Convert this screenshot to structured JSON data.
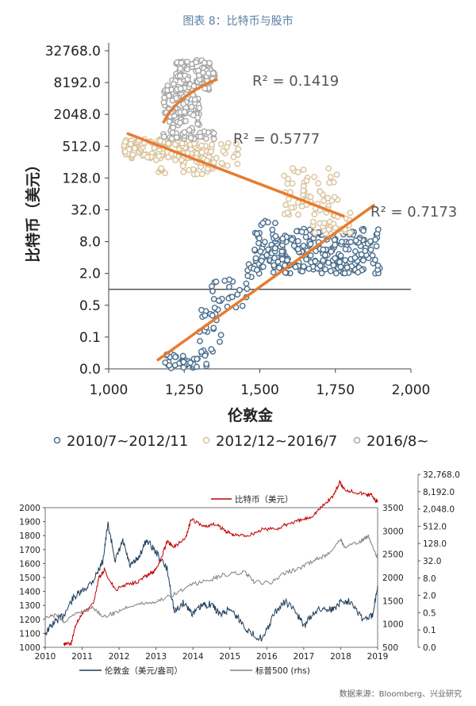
{
  "title": "图表 8：比特币与股市",
  "source": "数据来源：Bloomberg、兴业研究",
  "chart_data": [
    {
      "type": "scatter",
      "xlabel": "伦敦金",
      "ylabel": "比特币（美元）",
      "xlim": [
        1000,
        2000
      ],
      "yscale": "log2",
      "ylim": [
        0.05,
        32768
      ],
      "x_ticks": [
        1000,
        1250,
        1500,
        1750,
        2000
      ],
      "x_tick_labels": [
        "1,000",
        "1,250",
        "1,500",
        "1,750",
        "2,000"
      ],
      "y_ticks": [
        0.05,
        0.1,
        0.5,
        2,
        8,
        32,
        128,
        512,
        2048,
        8192,
        32768
      ],
      "y_tick_labels": [
        "0.0",
        "0.1",
        "0.5",
        "2.0",
        "8.0",
        "32.0",
        "128.0",
        "512.0",
        "2048.0",
        "8192.0",
        "32768.0"
      ],
      "legend_position": "bottom",
      "series": [
        {
          "name": "2010/7~2012/11",
          "color": "#4a6d8c",
          "clusters": [
            {
              "x": [
                1180,
                1330
              ],
              "y": [
                0.05,
                0.07
              ],
              "n": 40
            },
            {
              "x": [
                1300,
                1380
              ],
              "y": [
                0.07,
                0.4
              ],
              "n": 22
            },
            {
              "x": [
                1340,
                1470
              ],
              "y": [
                0.4,
                1.6
              ],
              "n": 24
            },
            {
              "x": [
                1420,
                1500
              ],
              "y": [
                1.2,
                3
              ],
              "n": 10
            },
            {
              "x": [
                1480,
                1560
              ],
              "y": [
                2.5,
                20
              ],
              "n": 40
            },
            {
              "x": [
                1540,
                1900
              ],
              "y": [
                2,
                14
              ],
              "n": 230
            }
          ],
          "trend_r2": 0.7173,
          "trend": {
            "x": [
              1160,
              1880
            ],
            "y": [
              0.06,
              40
            ]
          }
        },
        {
          "name": "2012/12~2016/7",
          "color": "#d9c29a",
          "clusters": [
            {
              "x": [
                1050,
                1300
              ],
              "y": [
                300,
                700
              ],
              "n": 130
            },
            {
              "x": [
                1150,
                1350
              ],
              "y": [
                150,
                400
              ],
              "n": 40
            },
            {
              "x": [
                1300,
                1430
              ],
              "y": [
                200,
                600
              ],
              "n": 35
            },
            {
              "x": [
                1580,
                1760
              ],
              "y": [
                25,
                200
              ],
              "n": 60
            },
            {
              "x": [
                1660,
                1800
              ],
              "y": [
                10,
                30
              ],
              "n": 30
            }
          ],
          "trend_r2": 0.5777,
          "trend": {
            "x": [
              1060,
              1780
            ],
            "y": [
              900,
              24
            ]
          }
        },
        {
          "name": "2016/8~",
          "color": "#a6a6a6",
          "clusters": [
            {
              "x": [
                1180,
                1300
              ],
              "y": [
                2000,
                8000
              ],
              "n": 90
            },
            {
              "x": [
                1210,
                1340
              ],
              "y": [
                6000,
                22000
              ],
              "n": 70
            },
            {
              "x": [
                1290,
                1360
              ],
              "y": [
                8000,
                14000
              ],
              "n": 30
            },
            {
              "x": [
                1200,
                1300
              ],
              "y": [
                1000,
                2500
              ],
              "n": 30
            },
            {
              "x": [
                1180,
                1350
              ],
              "y": [
                700,
                1000
              ],
              "n": 30
            }
          ],
          "trend_r2": 0.1419,
          "trend": {
            "x": [
              1180,
              1360
            ],
            "y": [
              1400,
              9500
            ]
          }
        }
      ],
      "annotations": [
        "R² = 0.1419",
        "R² = 0.5777",
        "R² = 0.7173"
      ],
      "trend_color": "#e87b2e"
    },
    {
      "type": "line",
      "x_ticks": [
        "2010",
        "2011",
        "2012",
        "2013",
        "2014",
        "2015",
        "2016",
        "2017",
        "2018",
        "2019"
      ],
      "xlim": [
        2010,
        2019
      ],
      "left_axis": {
        "lim": [
          1000,
          2000
        ],
        "ticks": [
          1000,
          1100,
          1200,
          1300,
          1400,
          1500,
          1600,
          1700,
          1800,
          1900,
          2000
        ]
      },
      "mid_axis": {
        "lim": [
          500,
          3500
        ],
        "ticks": [
          500,
          1000,
          1500,
          2000,
          2500,
          3000,
          3500
        ]
      },
      "right_axis": {
        "scale": "log2",
        "lim": [
          0.05,
          32768
        ],
        "tick_labels": [
          "0.0",
          "0.1",
          "0.5",
          "2.0",
          "8.0",
          "32.0",
          "128.0",
          "512.0",
          "2,048.0",
          "8,192.0",
          "32,768.0"
        ],
        "tick_values": [
          0.05,
          0.125,
          0.5,
          2,
          8,
          32,
          128,
          512,
          2048,
          8192,
          32768
        ]
      },
      "legend_position": "bottom",
      "series": [
        {
          "name": "伦敦金（美元/盎司）",
          "color": "#1f3d5c",
          "axis": "left",
          "x": [
            2010.0,
            2010.25,
            2010.5,
            2010.75,
            2011.0,
            2011.3,
            2011.55,
            2011.7,
            2011.9,
            2012.1,
            2012.3,
            2012.5,
            2012.75,
            2013.0,
            2013.3,
            2013.5,
            2013.75,
            2014.0,
            2014.25,
            2014.5,
            2014.75,
            2015.0,
            2015.25,
            2015.55,
            2015.9,
            2016.2,
            2016.5,
            2016.8,
            2017.0,
            2017.3,
            2017.6,
            2017.8,
            2018.0,
            2018.3,
            2018.6,
            2018.85,
            2019.0
          ],
          "y": [
            1100,
            1180,
            1230,
            1350,
            1400,
            1480,
            1610,
            1880,
            1620,
            1760,
            1580,
            1630,
            1770,
            1680,
            1560,
            1250,
            1320,
            1240,
            1300,
            1310,
            1230,
            1280,
            1200,
            1100,
            1060,
            1240,
            1330,
            1250,
            1150,
            1260,
            1280,
            1270,
            1330,
            1330,
            1200,
            1220,
            1440
          ]
        },
        {
          "name": "比特币（美元）",
          "color": "#c00000",
          "axis": "right",
          "x": [
            2010.5,
            2010.7,
            2010.85,
            2011.0,
            2011.3,
            2011.45,
            2011.6,
            2011.9,
            2012.2,
            2012.5,
            2012.75,
            2012.95,
            2013.1,
            2013.3,
            2013.5,
            2013.8,
            2013.95,
            2014.3,
            2014.6,
            2014.9,
            2015.1,
            2015.5,
            2015.9,
            2016.3,
            2016.6,
            2016.9,
            2017.2,
            2017.5,
            2017.8,
            2017.97,
            2018.1,
            2018.4,
            2018.7,
            2018.85,
            2018.95,
            2019.0
          ],
          "y": [
            0.06,
            0.06,
            0.2,
            0.5,
            1,
            8,
            15,
            3,
            5,
            6,
            10,
            13,
            30,
            150,
            100,
            200,
            900,
            500,
            600,
            350,
            250,
            250,
            400,
            430,
            650,
            800,
            1100,
            2500,
            6000,
            17000,
            10000,
            8000,
            6500,
            6300,
            3800,
            3800
          ]
        },
        {
          "name": "标普500 (rhs)",
          "color": "#808080",
          "axis": "mid",
          "x": [
            2010.0,
            2010.3,
            2010.5,
            2010.9,
            2011.3,
            2011.6,
            2011.9,
            2012.3,
            2012.7,
            2013.0,
            2013.5,
            2014.0,
            2014.5,
            2014.8,
            2015.4,
            2015.65,
            2016.1,
            2016.5,
            2016.9,
            2017.3,
            2017.6,
            2018.0,
            2018.1,
            2018.5,
            2018.75,
            2018.98,
            2019.0
          ],
          "y": [
            1120,
            1200,
            1050,
            1250,
            1350,
            1150,
            1250,
            1400,
            1450,
            1480,
            1650,
            1850,
            1960,
            2050,
            2120,
            1900,
            1880,
            2100,
            2200,
            2380,
            2470,
            2820,
            2650,
            2750,
            2900,
            2450,
            2500
          ]
        }
      ]
    }
  ]
}
